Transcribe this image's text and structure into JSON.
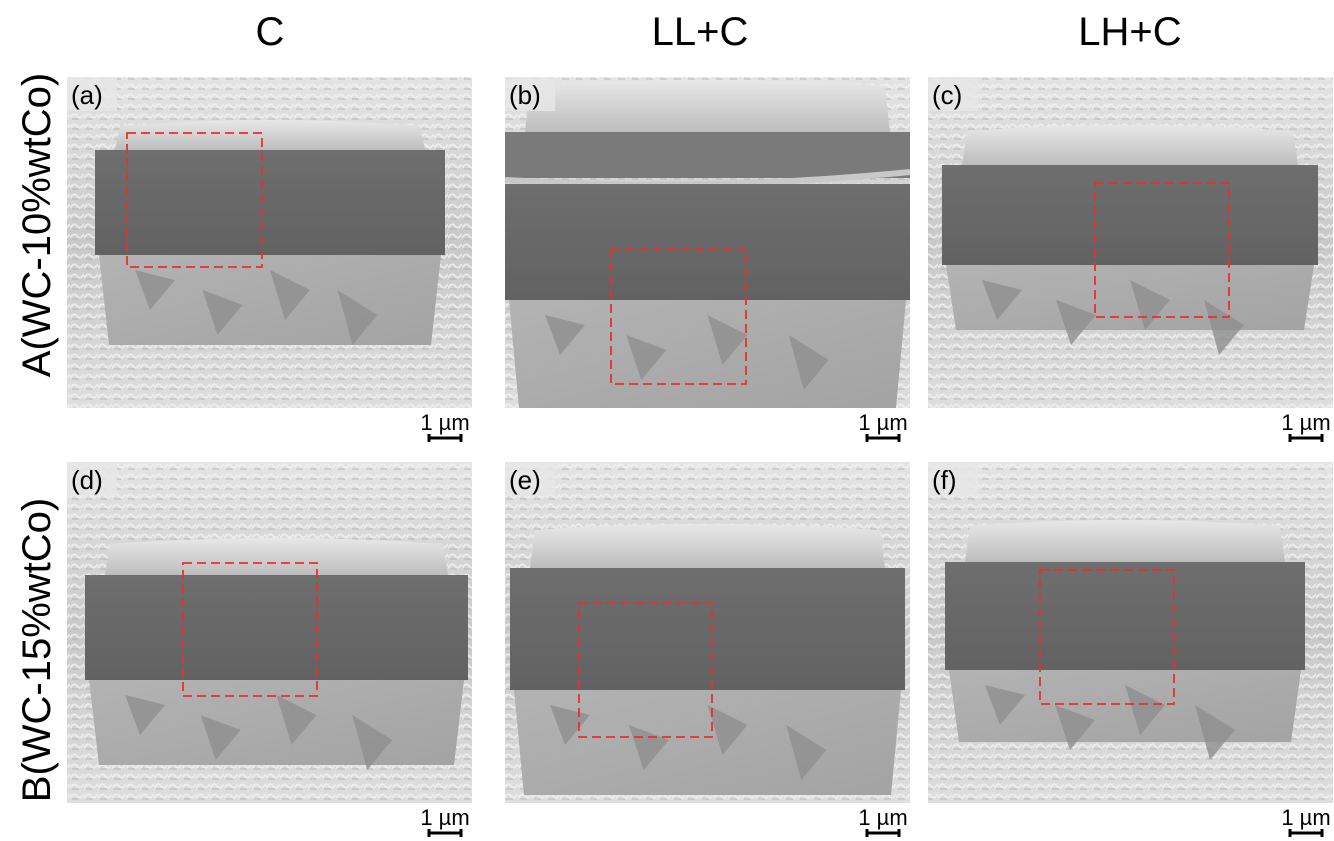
{
  "figure": {
    "columns": [
      "C",
      "LL+C",
      "LH+C"
    ],
    "rows": [
      "A(WC-10%wtCo)",
      "B(WC-15%wtCo)"
    ],
    "panels": [
      {
        "label": "(a)",
        "scale_bar": "1 µm"
      },
      {
        "label": "(b)",
        "scale_bar": "1 µm"
      },
      {
        "label": "(c)",
        "scale_bar": "1 µm"
      },
      {
        "label": "(d)",
        "scale_bar": "1 µm"
      },
      {
        "label": "(e)",
        "scale_bar": "1 µm"
      },
      {
        "label": "(f)",
        "scale_bar": "1 µm"
      }
    ]
  }
}
